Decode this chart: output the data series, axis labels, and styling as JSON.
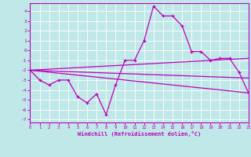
{
  "bg_color": "#c0e8e8",
  "line_color": "#bb00bb",
  "grid_color": "#ffffff",
  "xlabel": "Windchill (Refroidissement éolien,°C)",
  "xlim": [
    0,
    23
  ],
  "ylim": [
    -7.3,
    4.8
  ],
  "xticks": [
    0,
    1,
    2,
    3,
    4,
    5,
    6,
    7,
    8,
    9,
    10,
    11,
    12,
    13,
    14,
    15,
    16,
    17,
    18,
    19,
    20,
    21,
    22,
    23
  ],
  "yticks": [
    -7,
    -6,
    -5,
    -4,
    -3,
    -2,
    -1,
    0,
    1,
    2,
    3,
    4
  ],
  "main_x": [
    0,
    1,
    2,
    3,
    4,
    5,
    6,
    7,
    8,
    9,
    10,
    11,
    12,
    13,
    14,
    15,
    16,
    17,
    18,
    19,
    20,
    21,
    22,
    23
  ],
  "main_y": [
    -2.0,
    -3.0,
    -3.5,
    -3.0,
    -3.0,
    -4.7,
    -5.3,
    -4.4,
    -6.5,
    -3.5,
    -1.0,
    -1.0,
    1.0,
    4.5,
    3.5,
    3.5,
    2.5,
    -0.1,
    -0.1,
    -1.0,
    -0.8,
    -0.8,
    -2.2,
    -4.3
  ],
  "trend1_x": [
    0,
    23
  ],
  "trend1_y": [
    -2.0,
    -4.3
  ],
  "trend2_x": [
    0,
    23
  ],
  "trend2_y": [
    -2.0,
    -0.8
  ],
  "trend3_x": [
    0,
    23
  ],
  "trend3_y": [
    -2.0,
    -2.8
  ]
}
